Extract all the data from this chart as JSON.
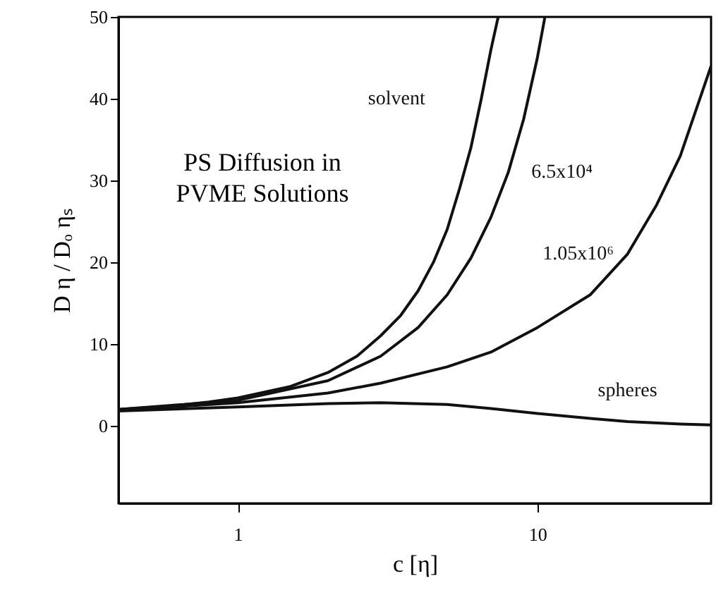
{
  "chart_data": {
    "type": "line",
    "xlabel": "c [η]",
    "ylabel": "D η / Dₒ ηₛ",
    "log": "x",
    "xlim": [
      0.4,
      38
    ],
    "ylim": [
      -9.5,
      50
    ],
    "xticks": [
      1,
      10
    ],
    "yticks": [
      0,
      10,
      20,
      30,
      40,
      50
    ],
    "grid": false,
    "marker": "none",
    "line_style": "solid",
    "series": [
      {
        "name": "solvent",
        "color": "#111111",
        "x": [
          0.4,
          0.6,
          0.8,
          1,
          1.5,
          2,
          2.5,
          3,
          3.5,
          4,
          4.5,
          5,
          5.5,
          6,
          6.5,
          7,
          7.4
        ],
        "values": [
          2.0,
          2.4,
          2.9,
          3.4,
          4.8,
          6.5,
          8.5,
          11,
          13.5,
          16.5,
          20,
          24,
          29,
          34,
          40,
          46,
          50
        ]
      },
      {
        "name": "6.5x10⁴",
        "color": "#111111",
        "x": [
          0.4,
          1,
          2,
          3,
          4,
          5,
          6,
          7,
          8,
          9,
          10,
          10.6
        ],
        "values": [
          2.0,
          3.1,
          5.5,
          8.5,
          12,
          16,
          20.5,
          25.5,
          31,
          37.5,
          45,
          50
        ]
      },
      {
        "name": "1.05x10⁶",
        "color": "#111111",
        "x": [
          0.4,
          1,
          2,
          3,
          5,
          7,
          10,
          15,
          20,
          25,
          30,
          38
        ],
        "values": [
          1.9,
          2.8,
          4,
          5.2,
          7.2,
          9,
          12,
          16,
          21,
          27,
          33,
          44
        ]
      },
      {
        "name": "spheres",
        "color": "#111111",
        "x": [
          0.4,
          1,
          2,
          3,
          5,
          7,
          10,
          15,
          20,
          30,
          38
        ],
        "values": [
          1.8,
          2.3,
          2.7,
          2.8,
          2.6,
          2.1,
          1.5,
          0.9,
          0.5,
          0.2,
          0.1
        ]
      }
    ],
    "annotations": [
      "PS Diffusion in\nPVME Solutions"
    ]
  }
}
